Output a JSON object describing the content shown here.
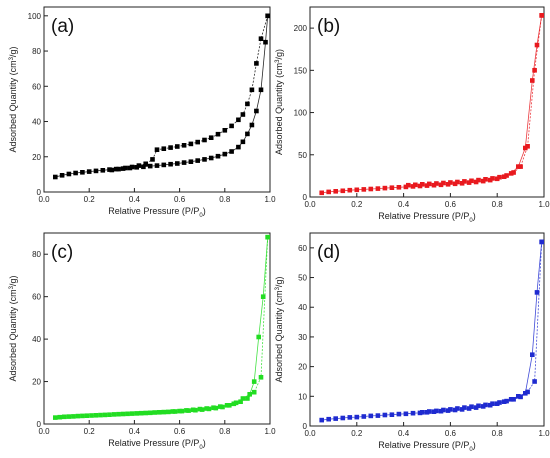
{
  "chart_data": [
    {
      "type": "scatter",
      "panel_label": "(a)",
      "color": "#000000",
      "xlabel_main": "Relative Pressure (P/P",
      "xlabel_sub": "0",
      "xlabel_end": ")",
      "ylabel_main": "Adsorbed Quantity (cm",
      "ylabel_sup": "3",
      "ylabel_end": "/g)",
      "xlim": [
        0.0,
        1.0
      ],
      "ylim": [
        0,
        105
      ],
      "xticks": [
        "0.0",
        "0.2",
        "0.4",
        "0.6",
        "0.8",
        "1.0"
      ],
      "yticks": [
        "0",
        "20",
        "40",
        "60",
        "80",
        "100"
      ],
      "series": [
        {
          "role": "adsorption",
          "x": [
            0.05,
            0.08,
            0.11,
            0.14,
            0.17,
            0.2,
            0.23,
            0.26,
            0.29,
            0.32,
            0.35,
            0.38,
            0.41,
            0.44,
            0.47,
            0.5,
            0.53,
            0.56,
            0.59,
            0.62,
            0.65,
            0.68,
            0.71,
            0.74,
            0.77,
            0.8,
            0.83,
            0.86,
            0.88,
            0.9,
            0.92,
            0.94,
            0.96,
            0.98,
            0.99
          ],
          "y": [
            8.5,
            9.5,
            10.2,
            10.8,
            11.2,
            11.6,
            12.0,
            12.3,
            12.7,
            13.0,
            13.3,
            13.6,
            14.0,
            14.3,
            14.7,
            15.0,
            15.4,
            15.8,
            16.2,
            16.7,
            17.2,
            17.8,
            18.5,
            19.3,
            20.3,
            21.5,
            23.0,
            25.5,
            28.5,
            33.0,
            38.0,
            46.0,
            58.0,
            85.0,
            100.0
          ]
        },
        {
          "role": "desorption",
          "x": [
            0.99,
            0.96,
            0.94,
            0.92,
            0.9,
            0.88,
            0.86,
            0.83,
            0.8,
            0.77,
            0.74,
            0.71,
            0.68,
            0.65,
            0.62,
            0.59,
            0.56,
            0.53,
            0.5,
            0.48,
            0.45,
            0.42,
            0.39,
            0.36,
            0.33,
            0.3
          ],
          "y": [
            100.0,
            87.0,
            73.0,
            58.0,
            50.0,
            44.0,
            41.0,
            37.5,
            35.0,
            32.8,
            30.8,
            29.5,
            28.3,
            27.3,
            26.5,
            25.8,
            25.2,
            24.6,
            24.0,
            18.5,
            16.0,
            15.0,
            14.2,
            13.6,
            13.0,
            12.5
          ]
        }
      ]
    },
    {
      "type": "scatter",
      "panel_label": "(b)",
      "color": "#e8191e",
      "xlabel_main": "Relative Pressure (P/P",
      "xlabel_sub": "0",
      "xlabel_end": ")",
      "ylabel_main": "Adsorbed Quantity (cm",
      "ylabel_sup": "3",
      "ylabel_end": "/g)",
      "xlim": [
        0.0,
        1.0
      ],
      "ylim": [
        0,
        225
      ],
      "xticks": [
        "0.0",
        "0.2",
        "0.4",
        "0.6",
        "0.8",
        "1.0"
      ],
      "yticks": [
        "0",
        "50",
        "100",
        "150",
        "200"
      ],
      "series": [
        {
          "role": "adsorption",
          "x": [
            0.05,
            0.08,
            0.11,
            0.14,
            0.17,
            0.2,
            0.23,
            0.26,
            0.29,
            0.32,
            0.35,
            0.38,
            0.41,
            0.44,
            0.47,
            0.5,
            0.53,
            0.56,
            0.59,
            0.62,
            0.65,
            0.68,
            0.71,
            0.74,
            0.77,
            0.8,
            0.83,
            0.86,
            0.89,
            0.92,
            0.95,
            0.97,
            0.99
          ],
          "y": [
            5.0,
            6.0,
            6.8,
            7.4,
            8.0,
            8.5,
            9.0,
            9.5,
            10.0,
            10.5,
            11.0,
            11.5,
            12.0,
            12.5,
            13.0,
            13.5,
            14.0,
            14.5,
            15.0,
            15.6,
            16.2,
            17.0,
            17.8,
            18.8,
            20.0,
            21.5,
            24.0,
            28.0,
            36.0,
            58.0,
            138.0,
            180.0,
            215.0
          ]
        },
        {
          "role": "desorption",
          "x": [
            0.99,
            0.96,
            0.93,
            0.9,
            0.87,
            0.84,
            0.81,
            0.78,
            0.75,
            0.72,
            0.69,
            0.66,
            0.63,
            0.6,
            0.57,
            0.54,
            0.51,
            0.48,
            0.45,
            0.42
          ],
          "y": [
            215.0,
            150.0,
            60.0,
            36.0,
            29.0,
            25.5,
            23.5,
            22.0,
            21.0,
            20.0,
            19.2,
            18.5,
            17.8,
            17.2,
            16.6,
            16.0,
            15.5,
            15.0,
            14.5,
            14.0
          ]
        }
      ]
    },
    {
      "type": "scatter",
      "panel_label": "(c)",
      "color": "#22dd22",
      "xlabel_main": "Relative Pressure (P/P",
      "xlabel_sub": "0",
      "xlabel_end": ")",
      "ylabel_main": "Adsorbed Quantity (cm",
      "ylabel_sup": "3",
      "ylabel_end": "/g)",
      "xlim": [
        0.0,
        1.0
      ],
      "ylim": [
        0,
        90
      ],
      "xticks": [
        "0.0",
        "0.2",
        "0.4",
        "0.6",
        "0.8",
        "1.0"
      ],
      "yticks": [
        "0",
        "20",
        "40",
        "60",
        "80"
      ],
      "series": [
        {
          "role": "adsorption",
          "x": [
            0.05,
            0.07,
            0.09,
            0.11,
            0.13,
            0.15,
            0.17,
            0.19,
            0.21,
            0.23,
            0.25,
            0.27,
            0.29,
            0.31,
            0.33,
            0.35,
            0.37,
            0.39,
            0.41,
            0.43,
            0.45,
            0.47,
            0.49,
            0.51,
            0.53,
            0.55,
            0.58,
            0.61,
            0.64,
            0.67,
            0.7,
            0.73,
            0.76,
            0.79,
            0.82,
            0.85,
            0.88,
            0.91,
            0.93,
            0.95,
            0.97,
            0.99
          ],
          "y": [
            3.0,
            3.2,
            3.4,
            3.5,
            3.6,
            3.7,
            3.8,
            3.9,
            4.0,
            4.1,
            4.2,
            4.3,
            4.4,
            4.5,
            4.6,
            4.7,
            4.8,
            4.9,
            5.0,
            5.1,
            5.2,
            5.3,
            5.4,
            5.5,
            5.6,
            5.7,
            5.9,
            6.1,
            6.3,
            6.5,
            6.8,
            7.1,
            7.5,
            8.0,
            8.8,
            10.0,
            12.0,
            14.0,
            20.0,
            41.0,
            60.0,
            88.0
          ]
        },
        {
          "role": "desorption",
          "x": [
            0.99,
            0.96,
            0.93,
            0.9,
            0.87,
            0.84,
            0.81,
            0.78,
            0.75,
            0.72,
            0.69,
            0.66,
            0.63,
            0.6,
            0.57
          ],
          "y": [
            88.0,
            22.0,
            15.0,
            12.0,
            10.5,
            9.5,
            8.8,
            8.2,
            7.7,
            7.3,
            7.0,
            6.7,
            6.4,
            6.1,
            5.9
          ]
        }
      ]
    },
    {
      "type": "scatter",
      "panel_label": "(d)",
      "color": "#1f2bd0",
      "xlabel_main": "Relative Pressure (P/P",
      "xlabel_sub": "0",
      "xlabel_end": ")",
      "ylabel_main": "Adsorbed Quantity (cm",
      "ylabel_sup": "3",
      "ylabel_end": "/g)",
      "xlim": [
        0.0,
        1.0
      ],
      "ylim": [
        0,
        65
      ],
      "xticks": [
        "0.0",
        "0.2",
        "0.4",
        "0.6",
        "0.8",
        "1.0"
      ],
      "yticks": [
        "0",
        "10",
        "20",
        "30",
        "40",
        "50",
        "60"
      ],
      "series": [
        {
          "role": "adsorption",
          "x": [
            0.05,
            0.08,
            0.11,
            0.14,
            0.17,
            0.2,
            0.23,
            0.26,
            0.29,
            0.32,
            0.35,
            0.38,
            0.41,
            0.44,
            0.47,
            0.5,
            0.53,
            0.56,
            0.59,
            0.62,
            0.65,
            0.68,
            0.71,
            0.74,
            0.77,
            0.8,
            0.83,
            0.86,
            0.89,
            0.92,
            0.95,
            0.97,
            0.99
          ],
          "y": [
            2.0,
            2.3,
            2.5,
            2.7,
            2.9,
            3.0,
            3.2,
            3.4,
            3.5,
            3.7,
            3.8,
            4.0,
            4.1,
            4.3,
            4.4,
            4.6,
            4.8,
            5.0,
            5.2,
            5.4,
            5.6,
            5.9,
            6.2,
            6.6,
            7.0,
            7.5,
            8.2,
            9.0,
            10.0,
            11.0,
            24.0,
            45.0,
            62.0
          ]
        },
        {
          "role": "desorption",
          "x": [
            0.99,
            0.96,
            0.93,
            0.9,
            0.87,
            0.84,
            0.81,
            0.78,
            0.75,
            0.72,
            0.69,
            0.66,
            0.63,
            0.6,
            0.57,
            0.54,
            0.51,
            0.48
          ],
          "y": [
            62.0,
            15.0,
            11.5,
            9.8,
            9.0,
            8.4,
            7.9,
            7.5,
            7.1,
            6.8,
            6.5,
            6.2,
            5.9,
            5.6,
            5.4,
            5.1,
            4.9,
            4.6
          ]
        }
      ]
    }
  ]
}
